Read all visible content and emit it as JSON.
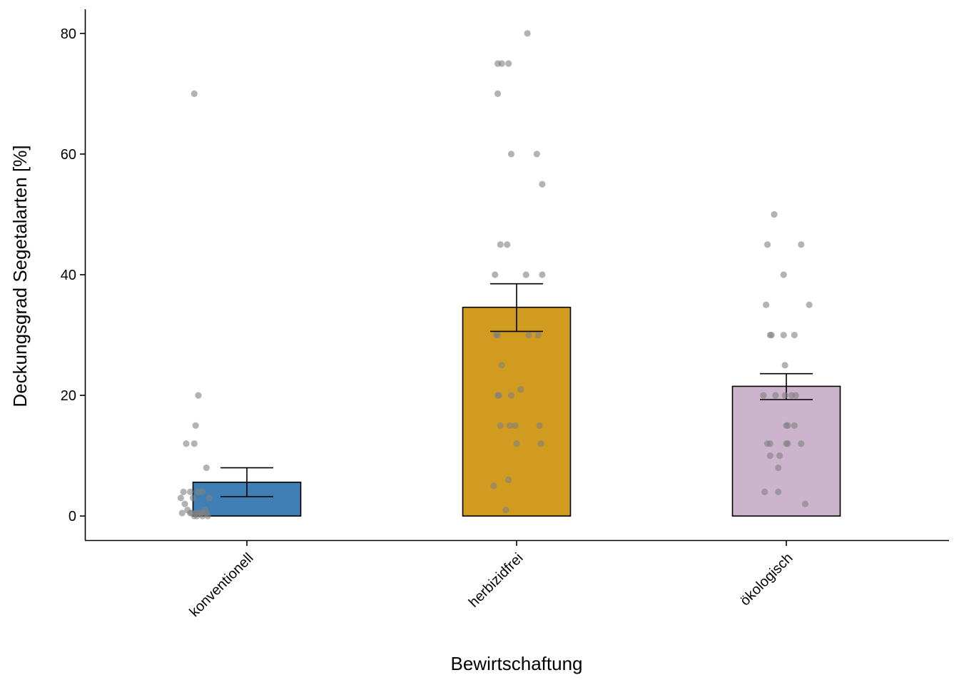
{
  "chart_data": {
    "type": "bar",
    "xlabel": "Bewirtschaftung",
    "ylabel": "Deckungsgrad Segetalarten [%]",
    "ylim": [
      -4,
      84
    ],
    "yticks": [
      0,
      20,
      40,
      60,
      80
    ],
    "grid": false,
    "categories": [
      "konventionell",
      "herbizidfrei",
      "ökologisch"
    ],
    "colors": [
      "#3f7fb6",
      "#d09b1f",
      "#ccb4cc"
    ],
    "point_color": "#808080",
    "values": [
      5.6,
      34.6,
      21.5
    ],
    "error_low": [
      3.2,
      30.6,
      19.3
    ],
    "error_high": [
      8.0,
      38.5,
      23.6
    ],
    "points": [
      [
        70,
        20,
        15,
        12,
        12,
        8,
        4,
        4,
        4,
        4,
        3,
        3,
        3,
        2,
        1,
        1,
        0.5,
        0.5,
        0.5,
        0.5,
        0.5,
        0.5,
        0.5,
        0,
        0,
        0,
        0
      ],
      [
        80,
        75,
        75,
        75,
        70,
        60,
        60,
        55,
        45,
        45,
        40,
        40,
        40,
        30,
        30,
        30,
        30,
        25,
        21,
        20,
        20,
        20,
        15,
        15,
        15,
        15,
        12,
        12,
        6,
        5,
        1
      ],
      [
        50,
        45,
        45,
        40,
        35,
        35,
        30,
        30,
        30,
        30,
        25,
        20,
        20,
        20,
        20,
        20,
        15,
        15,
        15,
        12,
        12,
        12,
        12,
        12,
        10,
        10,
        8,
        4,
        4,
        2
      ]
    ],
    "jitter": [
      [
        -0.39,
        -0.36,
        -0.38,
        -0.45,
        -0.39,
        -0.3,
        -0.42,
        -0.47,
        -0.36,
        -0.33,
        -0.4,
        -0.49,
        -0.28,
        -0.46,
        -0.31,
        -0.44,
        -0.48,
        -0.38,
        -0.35,
        -0.42,
        -0.3,
        -0.34,
        -0.41,
        -0.39,
        -0.37,
        -0.33,
        -0.29
      ],
      [
        0.08,
        -0.14,
        -0.11,
        -0.06,
        -0.14,
        -0.04,
        0.15,
        0.19,
        -0.12,
        -0.07,
        -0.16,
        0.07,
        0.19,
        -0.15,
        -0.14,
        0.09,
        0.16,
        -0.11,
        0.03,
        -0.13,
        -0.14,
        -0.04,
        -0.12,
        -0.05,
        -0.01,
        0.17,
        0.0,
        0.18,
        -0.06,
        -0.17,
        -0.08
      ],
      [
        -0.09,
        -0.14,
        0.11,
        -0.02,
        -0.15,
        0.17,
        -0.11,
        -0.12,
        -0.02,
        0.06,
        -0.01,
        -0.17,
        -0.08,
        -0.01,
        0.07,
        0.04,
        0.0,
        0.01,
        0.06,
        -0.14,
        -0.12,
        0.0,
        0.01,
        0.11,
        -0.12,
        -0.05,
        -0.06,
        -0.16,
        -0.06,
        0.14
      ]
    ]
  }
}
